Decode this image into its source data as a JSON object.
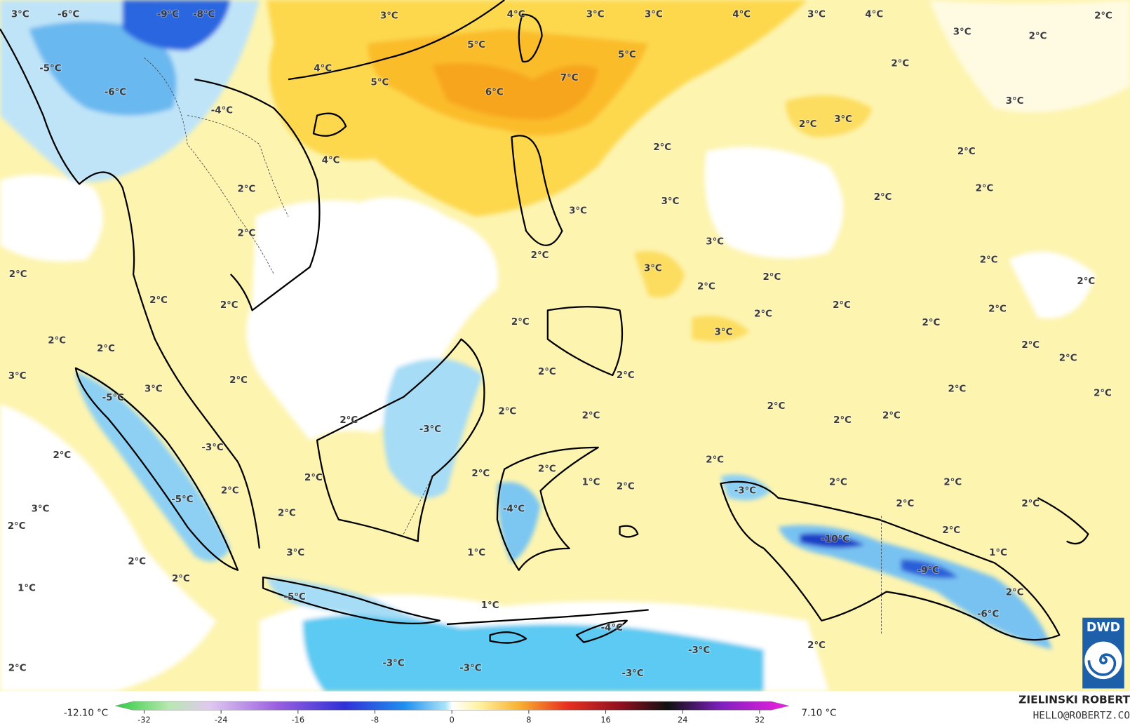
{
  "map_labels": [
    "3°C",
    "-6°C",
    "-9°C",
    "-8°C",
    "3°C",
    "4°C",
    "3°C",
    "3°C",
    "4°C",
    "3°C",
    "4°C",
    "2°C",
    "3°C",
    "2°C",
    "5°C",
    "5°C",
    "-5°C",
    "4°C",
    "7°C",
    "5°C",
    "2°C",
    "-6°C",
    "6°C",
    "3°C",
    "-4°C",
    "2°C",
    "3°C",
    "4°C",
    "2°C",
    "2°C",
    "2°C",
    "2°C",
    "2°C",
    "3°C",
    "3°C",
    "2°C",
    "3°C",
    "2°C",
    "2°C",
    "3°C",
    "2°C",
    "2°C",
    "2°C",
    "2°C",
    "2°C",
    "2°C",
    "2°C",
    "2°C",
    "2°C",
    "2°C",
    "2°C",
    "3°C",
    "2°C",
    "2°C",
    "2°C",
    "2°C",
    "2°C",
    "2°C",
    "3°C",
    "2°C",
    "3°C",
    "-5°C",
    "2°C",
    "2°C",
    "2°C",
    "2°C",
    "2°C",
    "2°C",
    "2°C",
    "2°C",
    "-3°C",
    "-3°C",
    "2°C",
    "2°C",
    "2°C",
    "2°C",
    "2°C",
    "1°C",
    "2°C",
    "2°C",
    "2°C",
    "-3°C",
    "2°C",
    "-5°C",
    "2°C",
    "2°C",
    "3°C",
    "-4°C",
    "2°C",
    "2°C",
    "2°C",
    "-10°C",
    "3°C",
    "1°C",
    "1°C",
    "2°C",
    "-9°C",
    "2°C",
    "1°C",
    "2°C",
    "-5°C",
    "1°C",
    "-6°C",
    "-4°C",
    "2°C",
    "-3°C",
    "-3°C",
    "-3°C",
    "2°C",
    "-3°C"
  ],
  "colorbar": {
    "min_label": "-12.10 °C",
    "max_label": "7.10 °C",
    "lim": [
      -32,
      32
    ],
    "ticks": [
      -32,
      -24,
      -16,
      -8,
      0,
      8,
      16,
      24,
      32
    ]
  },
  "credit": {
    "author": "ZIELINSKI ROBERT",
    "contact": "HELLO@ROBERTZ.CO"
  },
  "logo": "DWD"
}
